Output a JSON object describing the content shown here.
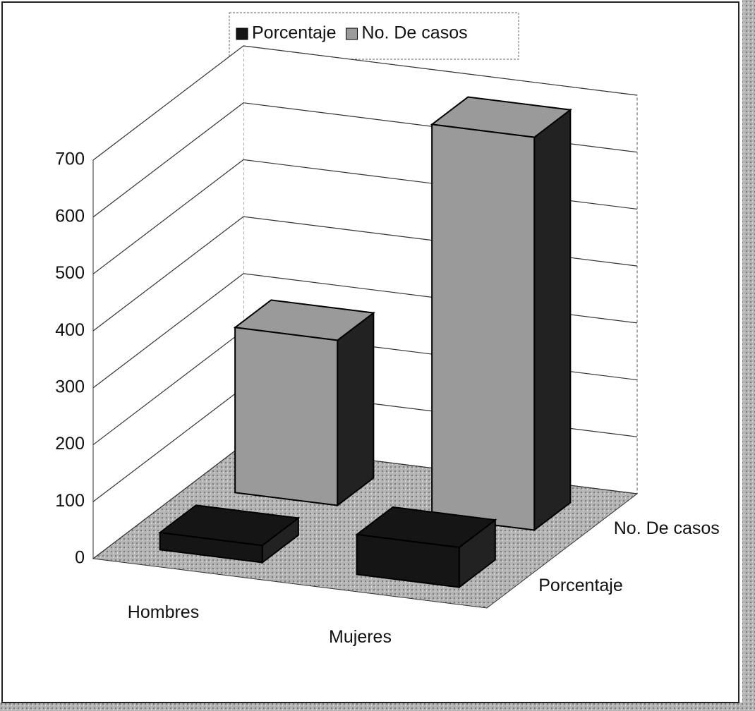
{
  "chart_data": {
    "type": "bar3d",
    "categories": [
      "Hombres",
      "Mujeres"
    ],
    "series": [
      {
        "name": "Porcentaje",
        "color": "#151515",
        "values": [
          30,
          70
        ]
      },
      {
        "name": "No. De casos",
        "color": "#9a9a9a",
        "values": [
          290,
          690
        ]
      }
    ],
    "ylim": [
      0,
      700
    ],
    "yticks": [
      0,
      100,
      200,
      300,
      400,
      500,
      600,
      700
    ],
    "grid": true,
    "legend": "top"
  }
}
